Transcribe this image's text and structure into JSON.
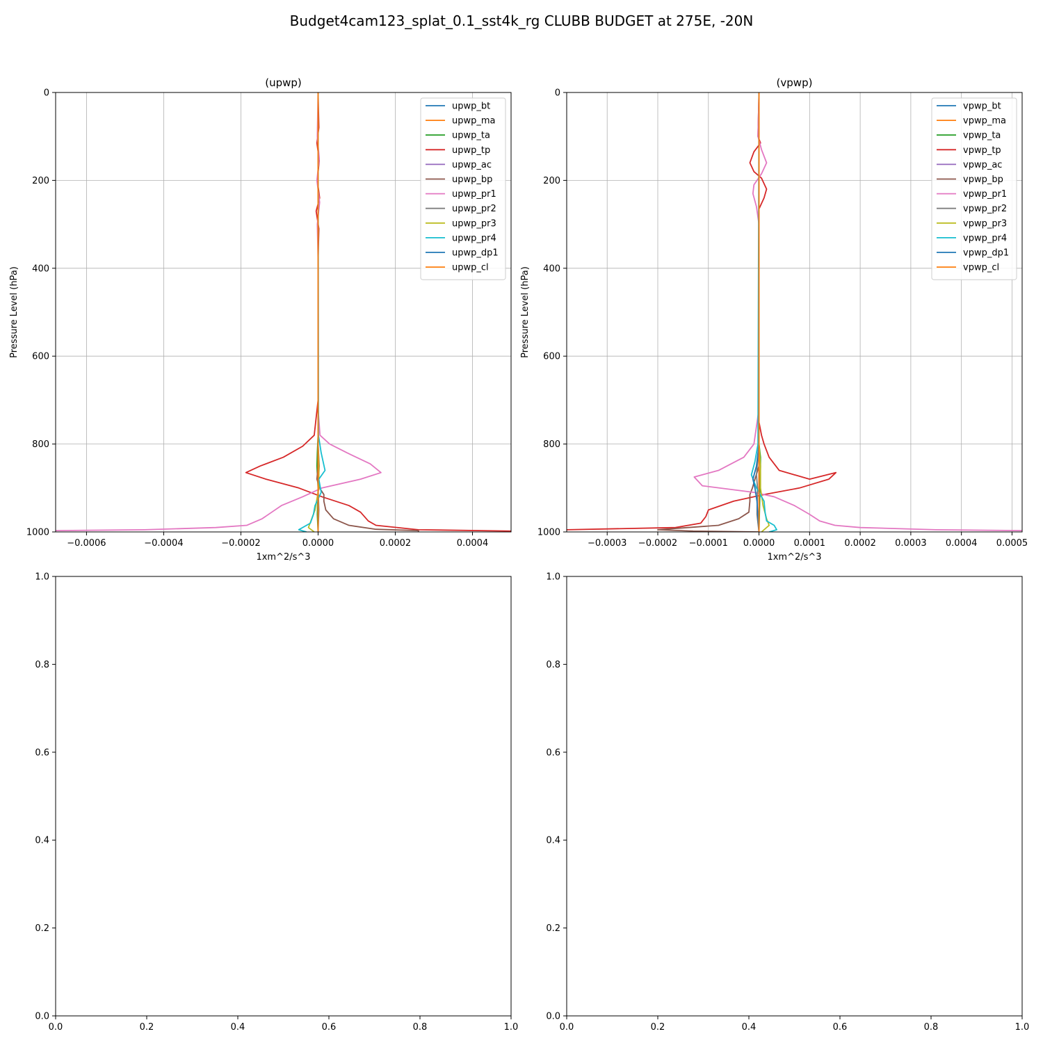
{
  "figure": {
    "suptitle": "Budget4cam123_splat_0.1_sst4k_rg CLUBB BUDGET at 275E, -20N"
  },
  "chart_data": [
    {
      "type": "line",
      "title": "(upwp)",
      "xlabel": "1xm^2/s^3",
      "ylabel": "Pressure Level (hPa)",
      "xlim": [
        -0.00068,
        0.0005
      ],
      "ylim": [
        1000,
        0
      ],
      "y_inverted": true,
      "grid": true,
      "legend_position": "upper-right",
      "xticks": [
        -0.0006,
        -0.0004,
        -0.0002,
        0.0,
        0.0002,
        0.0004
      ],
      "xtick_labels": [
        "−0.0006",
        "−0.0004",
        "−0.0002",
        "0.0000",
        "0.0002",
        "0.0004"
      ],
      "yticks": [
        0,
        200,
        400,
        600,
        800,
        1000
      ],
      "ytick_labels": [
        "0",
        "200",
        "400",
        "600",
        "800",
        "1000"
      ],
      "series": [
        {
          "name": "upwp_bt",
          "color": "#1f77b4",
          "x": [
            0,
            0,
            0,
            0,
            0,
            0
          ],
          "y": [
            0,
            200,
            400,
            800,
            950,
            1000
          ]
        },
        {
          "name": "upwp_ma",
          "color": "#ff7f0e",
          "x": [
            0,
            0,
            0,
            0,
            0,
            0
          ],
          "y": [
            0,
            200,
            400,
            800,
            950,
            1000
          ]
        },
        {
          "name": "upwp_ta",
          "color": "#2ca02c",
          "x": [
            0,
            0,
            -2e-06,
            -3e-06,
            0,
            -2e-06,
            0
          ],
          "y": [
            0,
            780,
            820,
            850,
            900,
            960,
            1000
          ]
        },
        {
          "name": "upwp_tp",
          "color": "#d62728",
          "x": [
            0,
            2e-06,
            -3e-06,
            3e-06,
            -2e-06,
            4e-06,
            -5e-06,
            2e-06,
            0,
            0,
            -1e-05,
            -4e-05,
            -9e-05,
            -0.00015,
            -0.000187,
            -0.000135,
            -5e-05,
            1e-05,
            8e-05,
            0.00011,
            0.00013,
            0.00015,
            0.00026,
            0.0005,
            0.0005
          ],
          "y": [
            0,
            80,
            115,
            155,
            200,
            240,
            270,
            310,
            380,
            700,
            780,
            805,
            830,
            850,
            865,
            880,
            900,
            920,
            940,
            955,
            975,
            985,
            995,
            998,
            1000
          ]
        },
        {
          "name": "upwp_ac",
          "color": "#9467bd",
          "x": [
            0,
            0,
            0,
            0,
            0,
            0
          ],
          "y": [
            0,
            200,
            400,
            800,
            950,
            1000
          ]
        },
        {
          "name": "upwp_bp",
          "color": "#8c564b",
          "x": [
            0,
            0,
            -3e-06,
            4e-06,
            1.5e-05,
            1.5e-05,
            2e-05,
            4e-05,
            8e-05,
            0.00015,
            0.00026,
            0.00026
          ],
          "y": [
            0,
            850,
            880,
            900,
            915,
            930,
            950,
            970,
            985,
            994,
            997,
            1000
          ]
        },
        {
          "name": "upwp_pr1",
          "color": "#e377c2",
          "x": [
            0,
            -2e-06,
            3e-06,
            -3e-06,
            4e-06,
            -2e-06,
            0,
            0,
            5e-06,
            3e-05,
            7.5e-05,
            0.000135,
            0.000163,
            0.00011,
            1e-05,
            -4e-05,
            -9.5e-05,
            -0.00012,
            -0.000145,
            -0.000185,
            -0.000265,
            -0.00045,
            -0.00068
          ],
          "y": [
            0,
            100,
            150,
            200,
            250,
            300,
            380,
            720,
            780,
            800,
            820,
            845,
            865,
            880,
            900,
            920,
            940,
            955,
            970,
            985,
            990,
            995,
            997
          ]
        },
        {
          "name": "upwp_pr2",
          "color": "#7f7f7f",
          "x": [
            0,
            0,
            3e-06,
            0,
            2e-06,
            0
          ],
          "y": [
            0,
            800,
            850,
            900,
            950,
            1000
          ]
        },
        {
          "name": "upwp_pr3",
          "color": "#bcbd22",
          "x": [
            0,
            0,
            2e-06,
            2e-06,
            -8e-06,
            -2.5e-05,
            -1e-05
          ],
          "y": [
            0,
            800,
            850,
            900,
            950,
            990,
            1000
          ]
        },
        {
          "name": "upwp_pr4",
          "color": "#17becf",
          "x": [
            0,
            1e-06,
            8e-06,
            1.8e-05,
            2e-06,
            8e-06,
            -8e-06,
            -1.2e-05,
            -2e-05,
            -5e-05,
            -3e-05
          ],
          "y": [
            0,
            780,
            820,
            860,
            880,
            910,
            940,
            960,
            980,
            995,
            1000
          ]
        },
        {
          "name": "upwp_dp1",
          "color": "#1f77b4",
          "x": [
            0,
            0,
            0,
            0,
            0,
            0
          ],
          "y": [
            0,
            200,
            400,
            800,
            950,
            1000
          ]
        },
        {
          "name": "upwp_cl",
          "color": "#ff7f0e",
          "x": [
            0,
            0,
            0,
            0,
            0,
            0
          ],
          "y": [
            0,
            200,
            400,
            800,
            950,
            1000
          ]
        }
      ]
    },
    {
      "type": "line",
      "title": "(vpwp)",
      "xlabel": "1xm^2/s^3",
      "ylabel": "Pressure Level (hPa)",
      "xlim": [
        -0.00038,
        0.00052
      ],
      "ylim": [
        1000,
        0
      ],
      "y_inverted": true,
      "grid": true,
      "legend_position": "upper-right",
      "xticks": [
        -0.0003,
        -0.0002,
        -0.0001,
        0.0,
        0.0001,
        0.0002,
        0.0003,
        0.0004,
        0.0005
      ],
      "xtick_labels": [
        "−0.0003",
        "−0.0002",
        "−0.0001",
        "0.0000",
        "0.0001",
        "0.0002",
        "0.0003",
        "0.0004",
        "0.0005"
      ],
      "yticks": [
        0,
        200,
        400,
        600,
        800,
        1000
      ],
      "ytick_labels": [
        "0",
        "200",
        "400",
        "600",
        "800",
        "1000"
      ],
      "series": [
        {
          "name": "vpwp_bt",
          "color": "#1f77b4",
          "x": [
            0,
            0,
            0,
            0,
            0,
            0
          ],
          "y": [
            0,
            200,
            400,
            800,
            950,
            1000
          ]
        },
        {
          "name": "vpwp_ma",
          "color": "#ff7f0e",
          "x": [
            0,
            0,
            0,
            0,
            0,
            0
          ],
          "y": [
            0,
            200,
            400,
            800,
            950,
            1000
          ]
        },
        {
          "name": "vpwp_ta",
          "color": "#2ca02c",
          "x": [
            0,
            0,
            3e-06,
            3e-06,
            2e-06,
            0
          ],
          "y": [
            0,
            800,
            830,
            850,
            900,
            1000
          ]
        },
        {
          "name": "vpwp_tp",
          "color": "#d62728",
          "x": [
            0,
            -2e-06,
            3e-06,
            -1e-05,
            -1.8e-05,
            -1e-05,
            5e-06,
            1.5e-05,
            1e-05,
            0,
            0,
            5e-06,
            1e-05,
            2e-05,
            4e-05,
            0.0001,
            0.000152,
            0.000138,
            8e-05,
            1e-05,
            -5e-05,
            -0.0001,
            -0.000105,
            -0.000115,
            -0.000165,
            -0.00038
          ],
          "y": [
            0,
            100,
            115,
            135,
            160,
            180,
            195,
            220,
            240,
            265,
            750,
            780,
            800,
            830,
            860,
            880,
            865,
            880,
            900,
            915,
            930,
            950,
            965,
            980,
            990,
            995
          ]
        },
        {
          "name": "vpwp_ac",
          "color": "#9467bd",
          "x": [
            0,
            0,
            0,
            0,
            0,
            0
          ],
          "y": [
            0,
            200,
            400,
            800,
            950,
            1000
          ]
        },
        {
          "name": "vpwp_bp",
          "color": "#8c564b",
          "x": [
            0,
            0,
            -8e-06,
            -1.3e-05,
            -1.8e-05,
            -1.8e-05,
            -2e-05,
            -4e-05,
            -8e-05,
            -0.00014,
            -0.0002,
            -0.00013,
            0
          ],
          "y": [
            0,
            850,
            880,
            900,
            915,
            930,
            955,
            970,
            985,
            990,
            995,
            998,
            1000
          ]
        },
        {
          "name": "vpwp_pr1",
          "color": "#e377c2",
          "x": [
            0,
            -2e-06,
            5e-06,
            1.5e-05,
            5e-06,
            -1e-05,
            -1.2e-05,
            -5e-06,
            0,
            0,
            -1e-05,
            -3e-05,
            -8e-05,
            -0.000128,
            -0.000112,
            -1e-05,
            3e-05,
            7e-05,
            0.0001,
            0.00012,
            0.00015,
            0.0002,
            0.00035,
            0.00052
          ],
          "y": [
            0,
            100,
            130,
            160,
            185,
            210,
            230,
            260,
            300,
            720,
            800,
            830,
            860,
            875,
            895,
            910,
            920,
            940,
            960,
            975,
            985,
            990,
            995,
            997
          ]
        },
        {
          "name": "vpwp_pr2",
          "color": "#7f7f7f",
          "x": [
            0,
            0,
            -5e-06,
            -3e-06,
            -4e-06,
            0
          ],
          "y": [
            0,
            800,
            870,
            900,
            960,
            1000
          ]
        },
        {
          "name": "vpwp_pr3",
          "color": "#bcbd22",
          "x": [
            0,
            0,
            3e-06,
            3e-06,
            8e-06,
            1.5e-05,
            2e-05,
            5e-06
          ],
          "y": [
            0,
            800,
            850,
            900,
            940,
            970,
            985,
            1000
          ]
        },
        {
          "name": "vpwp_pr4",
          "color": "#17becf",
          "x": [
            0,
            -2e-06,
            -8e-06,
            -1.5e-05,
            -5e-06,
            1e-05,
            1.2e-05,
            1.5e-05,
            3e-05,
            3.5e-05,
            2e-05
          ],
          "y": [
            0,
            800,
            840,
            870,
            900,
            930,
            955,
            975,
            985,
            995,
            1000
          ]
        },
        {
          "name": "vpwp_dp1",
          "color": "#1f77b4",
          "x": [
            0,
            0,
            -5e-06,
            -1.2e-05,
            -8e-06,
            -4e-06,
            0
          ],
          "y": [
            0,
            800,
            850,
            880,
            900,
            930,
            1000
          ]
        },
        {
          "name": "vpwp_cl",
          "color": "#ff7f0e",
          "x": [
            0,
            0,
            0,
            0,
            0,
            0
          ],
          "y": [
            0,
            200,
            400,
            800,
            950,
            1000
          ]
        }
      ]
    },
    {
      "type": "line",
      "title": "",
      "xlim": [
        0,
        1
      ],
      "ylim": [
        0,
        1
      ],
      "grid": false,
      "xticks": [
        0.0,
        0.2,
        0.4,
        0.6,
        0.8,
        1.0
      ],
      "xtick_labels": [
        "0.0",
        "0.2",
        "0.4",
        "0.6",
        "0.8",
        "1.0"
      ],
      "yticks": [
        0.0,
        0.2,
        0.4,
        0.6,
        0.8,
        1.0
      ],
      "ytick_labels": [
        "0.0",
        "0.2",
        "0.4",
        "0.6",
        "0.8",
        "1.0"
      ],
      "series": []
    },
    {
      "type": "line",
      "title": "",
      "xlim": [
        0,
        1
      ],
      "ylim": [
        0,
        1
      ],
      "grid": false,
      "xticks": [
        0.0,
        0.2,
        0.4,
        0.6,
        0.8,
        1.0
      ],
      "xtick_labels": [
        "0.0",
        "0.2",
        "0.4",
        "0.6",
        "0.8",
        "1.0"
      ],
      "yticks": [
        0.0,
        0.2,
        0.4,
        0.6,
        0.8,
        1.0
      ],
      "ytick_labels": [
        "0.0",
        "0.2",
        "0.4",
        "0.6",
        "0.8",
        "1.0"
      ],
      "series": []
    }
  ]
}
